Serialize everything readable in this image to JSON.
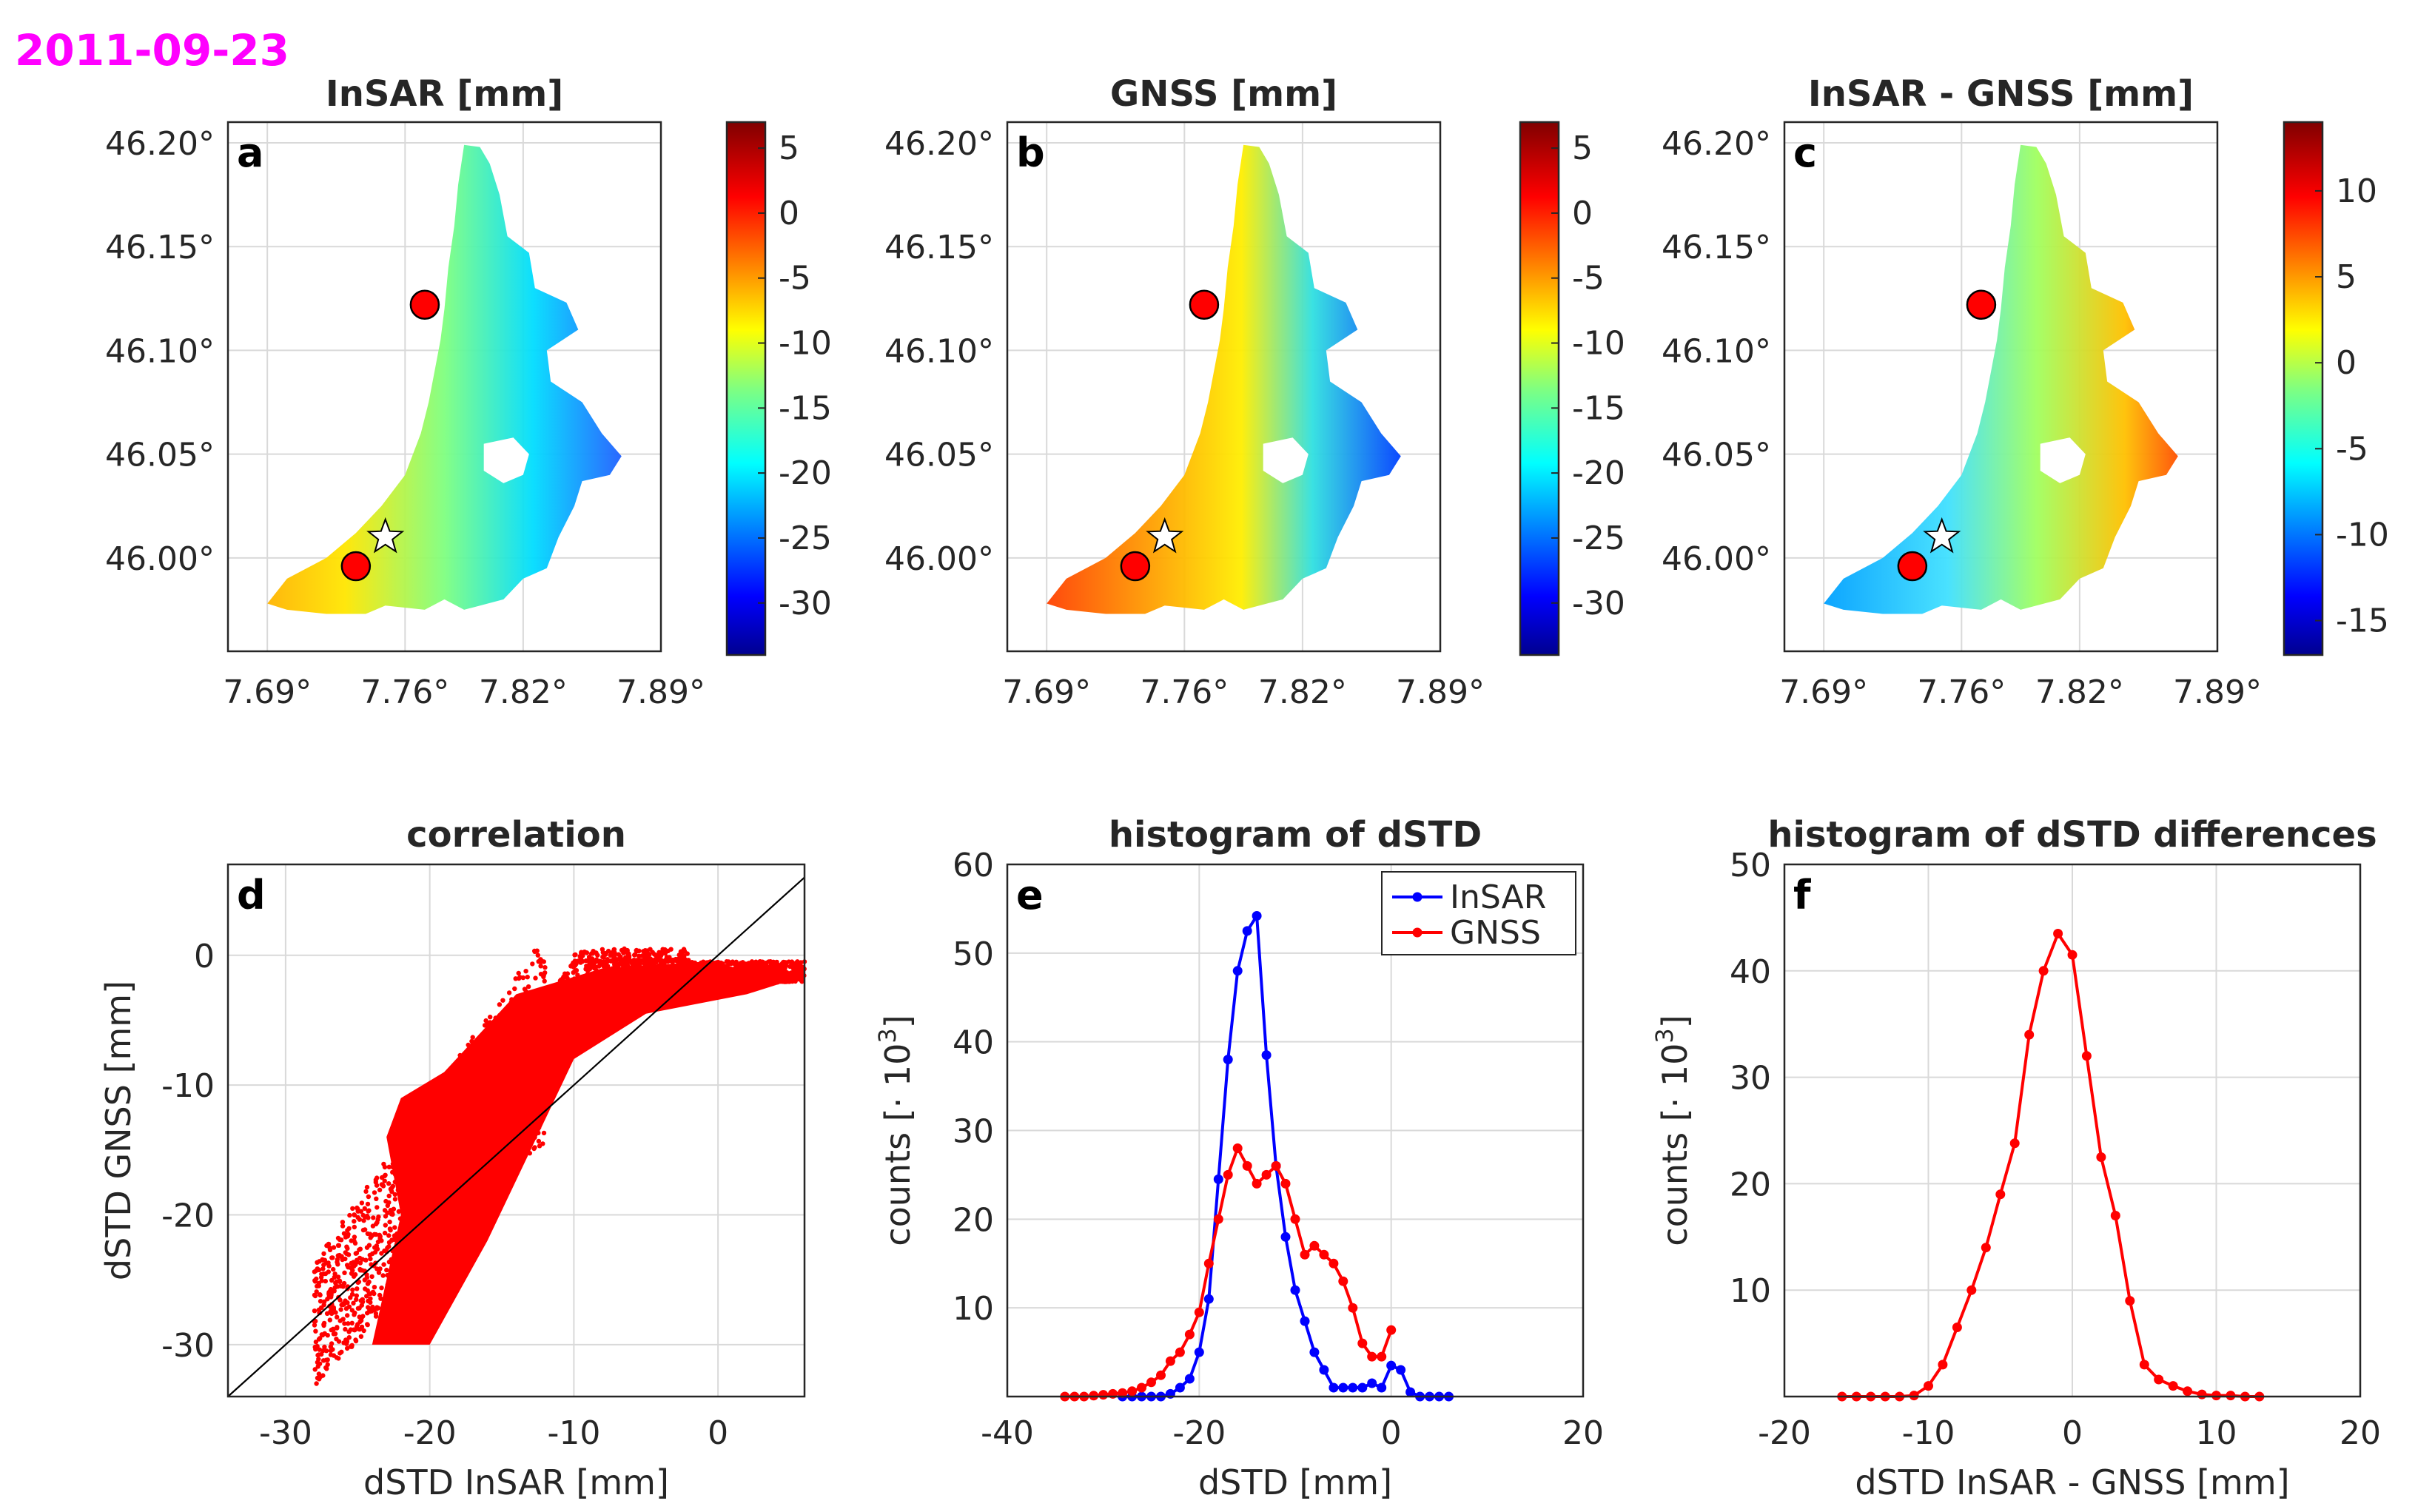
{
  "date_label": "2011-09-23",
  "colors": {
    "date": "#ff00ff",
    "insar": "#0000ff",
    "gnss": "#ff0000"
  },
  "chart_data": [
    {
      "id": "a",
      "type": "heatmap",
      "title": "InSAR [mm]",
      "panel_label": "a",
      "xticks": [
        "7.69°",
        "7.76°",
        "7.82°",
        "7.89°"
      ],
      "yticks": [
        "46.20°",
        "46.15°",
        "46.10°",
        "46.05°",
        "46.00°"
      ],
      "xlim": [
        7.67,
        7.89
      ],
      "ylim": [
        45.955,
        46.21
      ],
      "colorbar": {
        "ticks": [
          "5",
          "0",
          "-5",
          "-10",
          "-15",
          "-20",
          "-25",
          "-30"
        ],
        "range": [
          -34,
          7
        ]
      },
      "markers": {
        "circles": [
          [
            7.77,
            46.122
          ],
          [
            7.735,
            45.996
          ]
        ],
        "star": [
          7.75,
          46.01
        ]
      }
    },
    {
      "id": "b",
      "type": "heatmap",
      "title": "GNSS [mm]",
      "panel_label": "b",
      "xticks": [
        "7.69°",
        "7.76°",
        "7.82°",
        "7.89°"
      ],
      "yticks": [
        "46.20°",
        "46.15°",
        "46.10°",
        "46.05°",
        "46.00°"
      ],
      "xlim": [
        7.67,
        7.89
      ],
      "ylim": [
        45.955,
        46.21
      ],
      "colorbar": {
        "ticks": [
          "5",
          "0",
          "-5",
          "-10",
          "-15",
          "-20",
          "-25",
          "-30"
        ],
        "range": [
          -34,
          7
        ]
      },
      "markers": {
        "circles": [
          [
            7.77,
            46.122
          ],
          [
            7.735,
            45.996
          ]
        ],
        "star": [
          7.75,
          46.01
        ]
      }
    },
    {
      "id": "c",
      "type": "heatmap",
      "title": "InSAR - GNSS [mm]",
      "panel_label": "c",
      "xticks": [
        "7.69°",
        "7.76°",
        "7.82°",
        "7.89°"
      ],
      "yticks": [
        "46.20°",
        "46.15°",
        "46.10°",
        "46.05°",
        "46.00°"
      ],
      "xlim": [
        7.67,
        7.89
      ],
      "ylim": [
        45.955,
        46.21
      ],
      "colorbar": {
        "ticks": [
          "10",
          "5",
          "0",
          "-5",
          "-10",
          "-15"
        ],
        "range": [
          -17,
          14
        ]
      },
      "markers": {
        "circles": [
          [
            7.77,
            46.122
          ],
          [
            7.735,
            45.996
          ]
        ],
        "star": [
          7.75,
          46.01
        ]
      }
    },
    {
      "id": "d",
      "type": "scatter",
      "title": "correlation",
      "panel_label": "d",
      "xlabel": "dSTD InSAR [mm]",
      "ylabel": "dSTD GNSS [mm]",
      "xlim": [
        -34,
        6
      ],
      "ylim": [
        -34,
        7
      ],
      "xticks": [
        "-30",
        "-20",
        "-10",
        "0"
      ],
      "yticks": [
        "0",
        "-10",
        "-20",
        "-30"
      ],
      "reference_line": "y = x"
    },
    {
      "id": "e",
      "type": "line",
      "title": "histogram of dSTD",
      "panel_label": "e",
      "xlabel": "dSTD [mm]",
      "ylabel": "counts [· 10",
      "ylabel_sup": "3",
      "ylabel_end": "]",
      "xlim": [
        -40,
        20
      ],
      "ylim": [
        0,
        60
      ],
      "xticks": [
        "-40",
        "-20",
        "0",
        "20"
      ],
      "yticks": [
        "10",
        "20",
        "30",
        "40",
        "50",
        "60"
      ],
      "legend": [
        "InSAR",
        "GNSS"
      ],
      "series": [
        {
          "name": "InSAR",
          "x": [
            -28,
            -27,
            -26,
            -25,
            -24,
            -23,
            -22,
            -21,
            -20,
            -19,
            -18,
            -17,
            -16,
            -15,
            -14,
            -13,
            -12,
            -11,
            -10,
            -9,
            -8,
            -7,
            -6,
            -5,
            -4,
            -3,
            -2,
            -1,
            0,
            1,
            2,
            3,
            4,
            5,
            6
          ],
          "values": [
            0,
            0,
            0,
            0,
            0,
            0.3,
            1,
            2,
            5,
            11,
            24.5,
            38,
            48,
            52.5,
            54.2,
            38.5,
            26,
            18,
            12,
            8.5,
            5,
            3,
            1,
            1,
            1,
            1,
            1.5,
            1,
            3.5,
            3,
            0.5,
            0,
            0,
            0,
            0
          ]
        },
        {
          "name": "GNSS",
          "x": [
            -34,
            -33,
            -32,
            -31,
            -30,
            -29,
            -28,
            -27,
            -26,
            -25,
            -24,
            -23,
            -22,
            -21,
            -20,
            -19,
            -18,
            -17,
            -16,
            -15,
            -14,
            -13,
            -12,
            -11,
            -10,
            -9,
            -8,
            -7,
            -6,
            -5,
            -4,
            -3,
            -2,
            -1,
            0
          ],
          "values": [
            0,
            0,
            0,
            0.1,
            0.2,
            0.3,
            0.4,
            0.6,
            1,
            1.6,
            2.4,
            4,
            5,
            7,
            9.5,
            15,
            20,
            25,
            28,
            26,
            24,
            25,
            26,
            24,
            20,
            16,
            17,
            16,
            15,
            13,
            10,
            6,
            4.5,
            4.5,
            7.5
          ]
        }
      ]
    },
    {
      "id": "f",
      "type": "line",
      "title": "histogram of dSTD differences",
      "panel_label": "f",
      "xlabel": "dSTD InSAR - GNSS [mm]",
      "ylabel": "counts [· 10",
      "ylabel_sup": "3",
      "ylabel_end": "]",
      "xlim": [
        -20,
        20
      ],
      "ylim": [
        0,
        50
      ],
      "xticks": [
        "-20",
        "-10",
        "0",
        "10",
        "20"
      ],
      "yticks": [
        "10",
        "20",
        "30",
        "40",
        "50"
      ],
      "series": [
        {
          "name": "InSAR - GNSS",
          "x": [
            -16,
            -15,
            -14,
            -13,
            -12,
            -11,
            -10,
            -9,
            -8,
            -7,
            -6,
            -5,
            -4,
            -3,
            -2,
            -1,
            0,
            1,
            2,
            3,
            4,
            5,
            6,
            7,
            8,
            9,
            10,
            11,
            12,
            13
          ],
          "values": [
            0,
            0,
            0,
            0,
            0,
            0.1,
            1,
            3,
            6.5,
            10,
            14,
            19,
            23.8,
            34,
            40,
            43.5,
            41.5,
            32,
            22.5,
            17,
            9,
            3,
            1.6,
            1,
            0.5,
            0.2,
            0.1,
            0.1,
            0,
            0
          ]
        }
      ]
    }
  ]
}
